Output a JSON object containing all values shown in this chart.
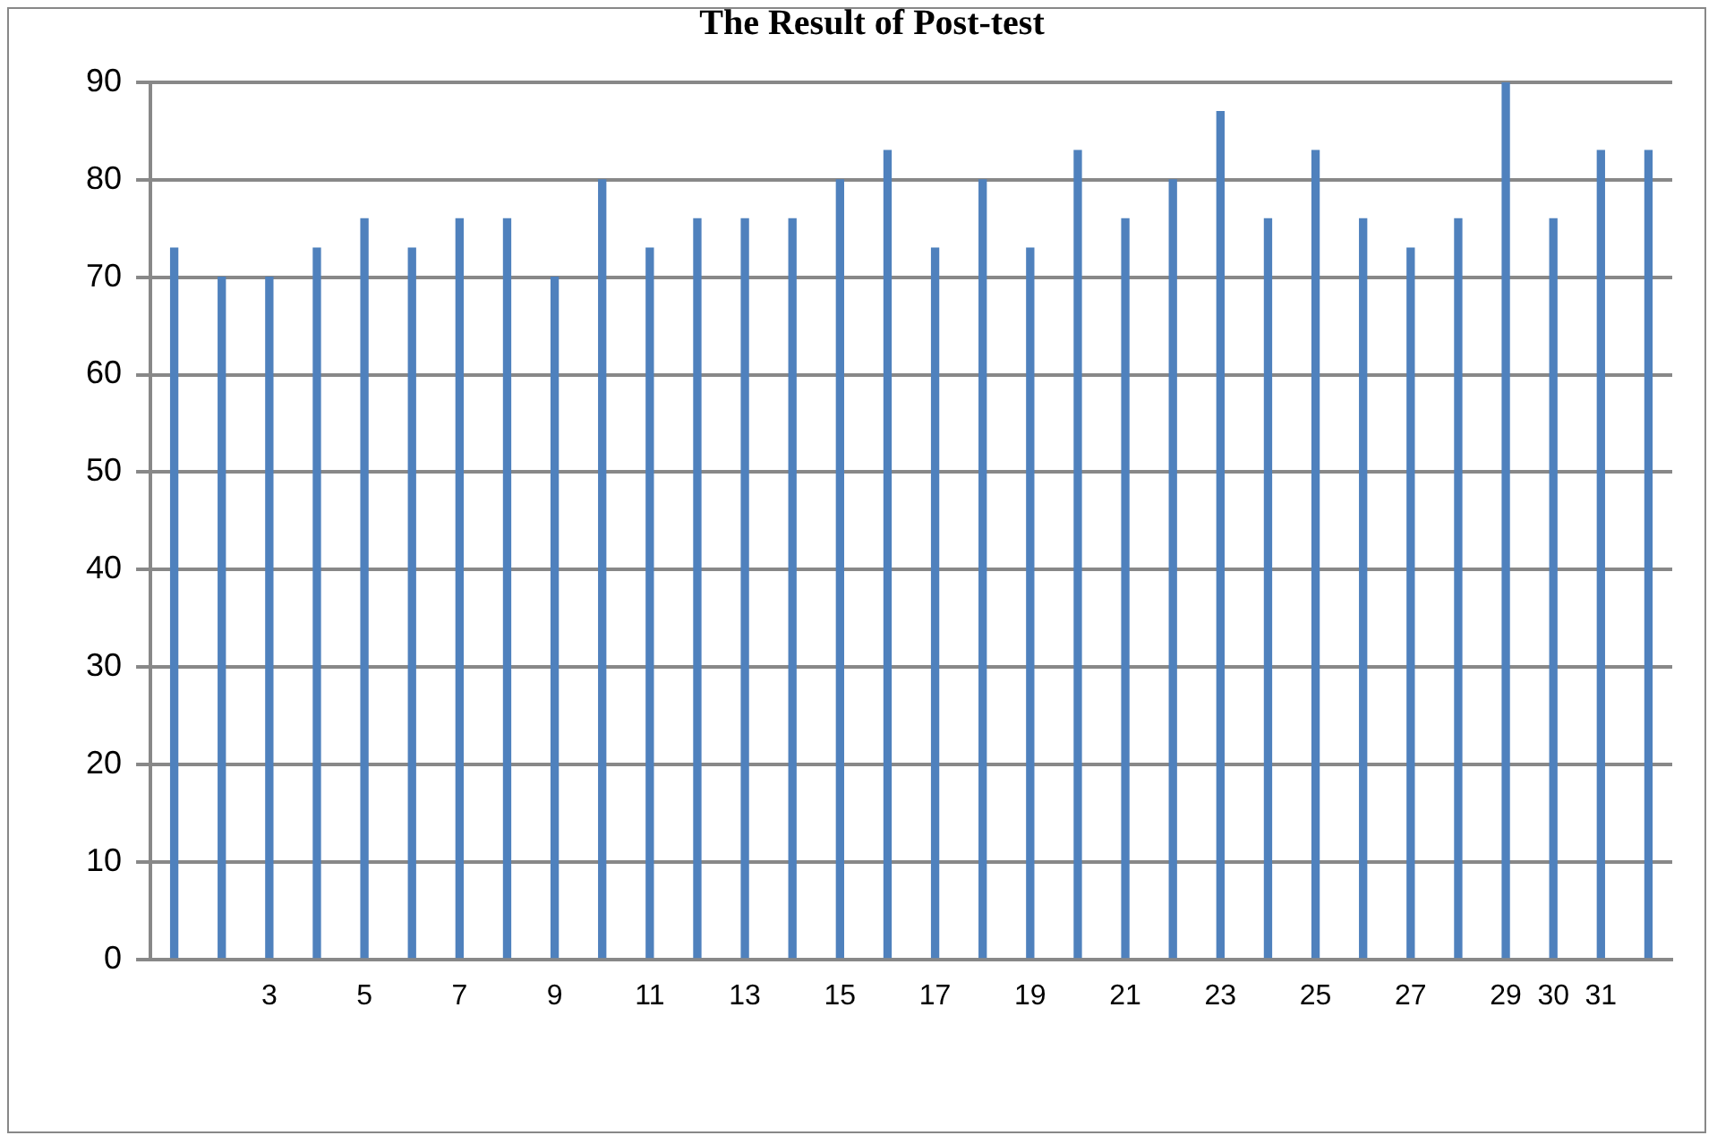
{
  "chart_data": {
    "type": "bar",
    "title": "The Result of Post-test",
    "categories": [
      null,
      null,
      "3",
      null,
      "5",
      null,
      "7",
      null,
      "9",
      null,
      "11",
      null,
      "13",
      null,
      "15",
      null,
      "17",
      null,
      "19",
      null,
      "21",
      null,
      "23",
      null,
      "25",
      null,
      "27",
      null,
      "29",
      "30",
      "31",
      null
    ],
    "values": [
      73,
      70,
      70,
      73,
      76,
      73,
      76,
      76,
      70,
      80,
      73,
      76,
      76,
      76,
      80,
      83,
      73,
      80,
      73,
      83,
      76,
      80,
      87,
      76,
      83,
      76,
      73,
      76,
      90,
      76,
      83,
      83
    ],
    "color": "#4f81bd",
    "ylim": [
      0,
      90
    ],
    "yticks": [
      0,
      10,
      20,
      30,
      40,
      50,
      60,
      70,
      80,
      90
    ],
    "grid": "y",
    "legend": false
  }
}
